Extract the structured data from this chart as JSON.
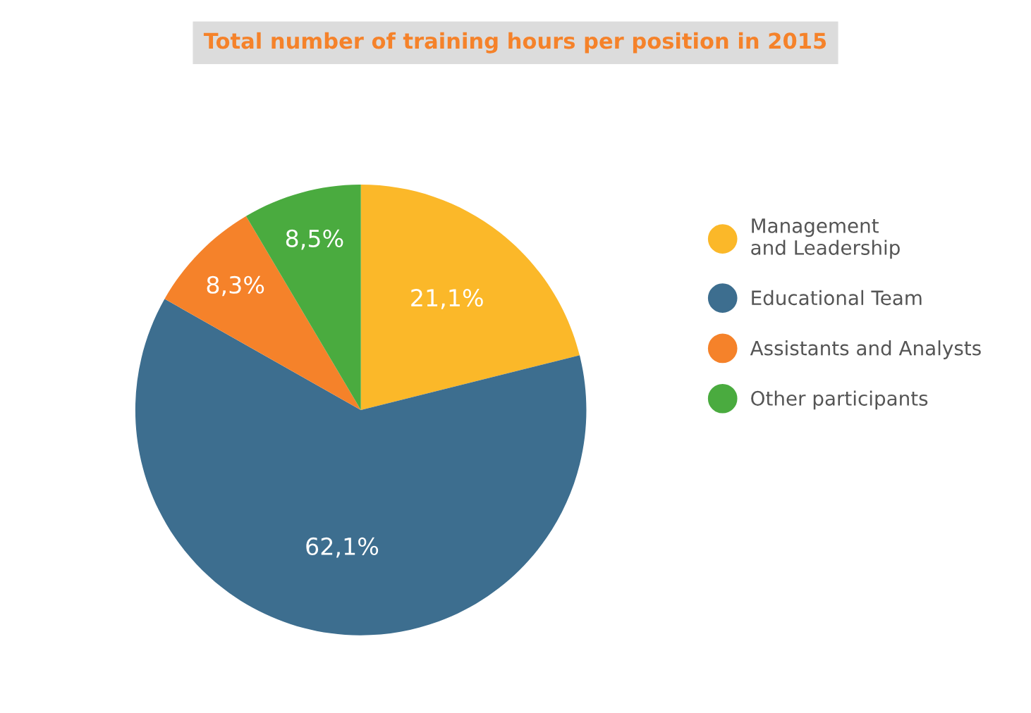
{
  "chart_data": {
    "type": "pie",
    "title": "Total number of training hours per position in 2015",
    "categories": [
      "Management\nand Leadership",
      "Educational Team",
      "Assistants and Analysts",
      "Other participants"
    ],
    "values": [
      21.1,
      62.1,
      8.3,
      8.5
    ],
    "colors": [
      "#fbb829",
      "#3d6e8f",
      "#f5822a",
      "#4aab3f"
    ],
    "value_labels": [
      "21,1%",
      "62,1%",
      "8,3%",
      "8,5%"
    ],
    "legend": "right"
  }
}
